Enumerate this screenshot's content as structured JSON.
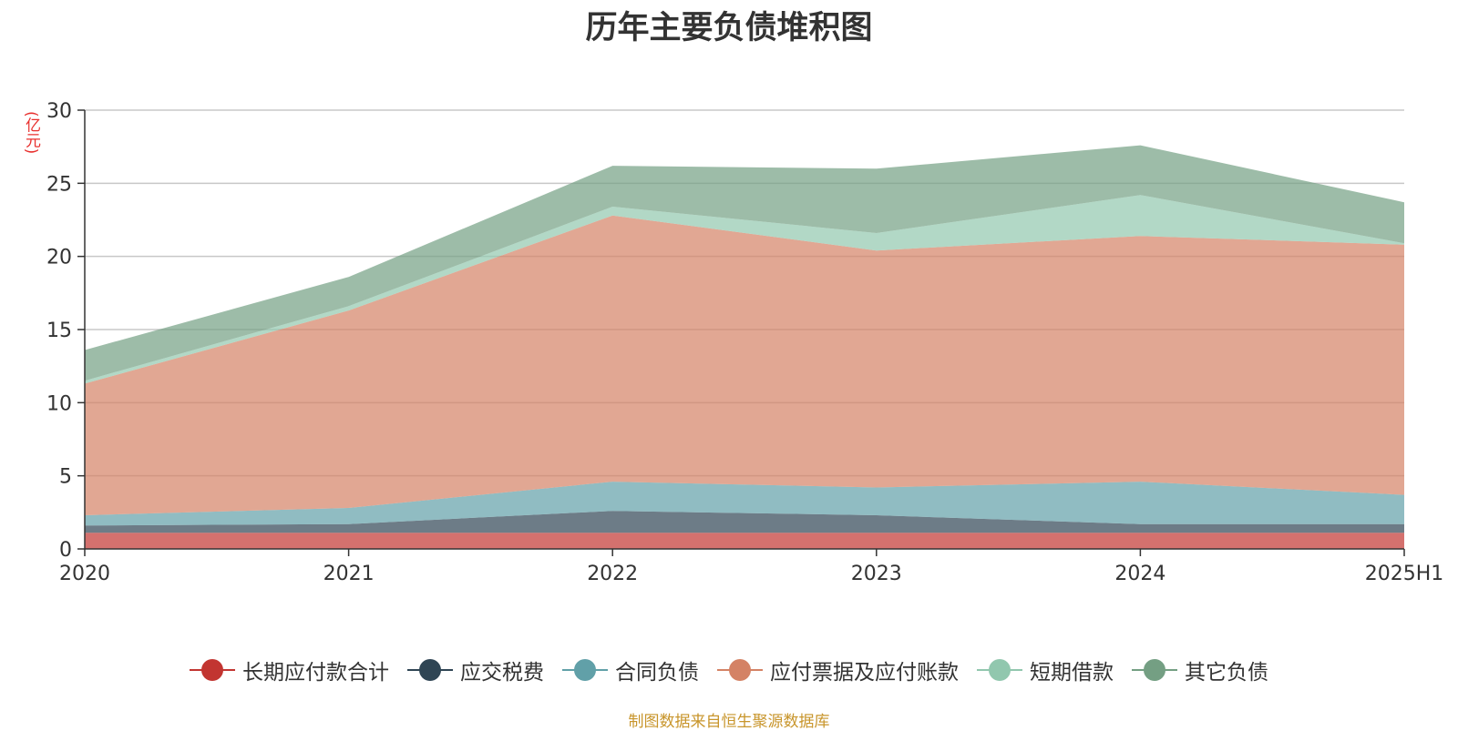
{
  "chart_data": {
    "type": "area",
    "title": "历年主要负债堆积图",
    "y_unit": "(亿元)",
    "categories": [
      "2020",
      "2021",
      "2022",
      "2023",
      "2024",
      "2025H1"
    ],
    "ylim": [
      0,
      30
    ],
    "yticks": [
      "0",
      "5",
      "10",
      "15",
      "20",
      "25",
      "30"
    ],
    "grid": true,
    "stacked": true,
    "legend_position": "bottom",
    "series": [
      {
        "name": "长期应付款合计",
        "color": "#c23531",
        "values": [
          1.1,
          1.1,
          1.1,
          1.1,
          1.1,
          1.1
        ]
      },
      {
        "name": "应交税费",
        "color": "#2f4554",
        "values": [
          0.5,
          0.6,
          1.5,
          1.2,
          0.6,
          0.6
        ]
      },
      {
        "name": "合同负债",
        "color": "#61a0a8",
        "values": [
          0.7,
          1.1,
          2.0,
          1.9,
          2.9,
          2.0
        ]
      },
      {
        "name": "应付票据及应付账款",
        "color": "#d48265",
        "values": [
          9.0,
          13.5,
          18.2,
          16.2,
          16.8,
          17.1
        ]
      },
      {
        "name": "短期借款",
        "color": "#91c7ae",
        "values": [
          0.2,
          0.3,
          0.6,
          1.2,
          2.8,
          0.1
        ]
      },
      {
        "name": "其它负债",
        "color": "#749f83",
        "values": [
          2.1,
          2.0,
          2.8,
          4.4,
          3.4,
          2.8
        ]
      }
    ]
  },
  "source_note": "制图数据来自恒生聚源数据库"
}
